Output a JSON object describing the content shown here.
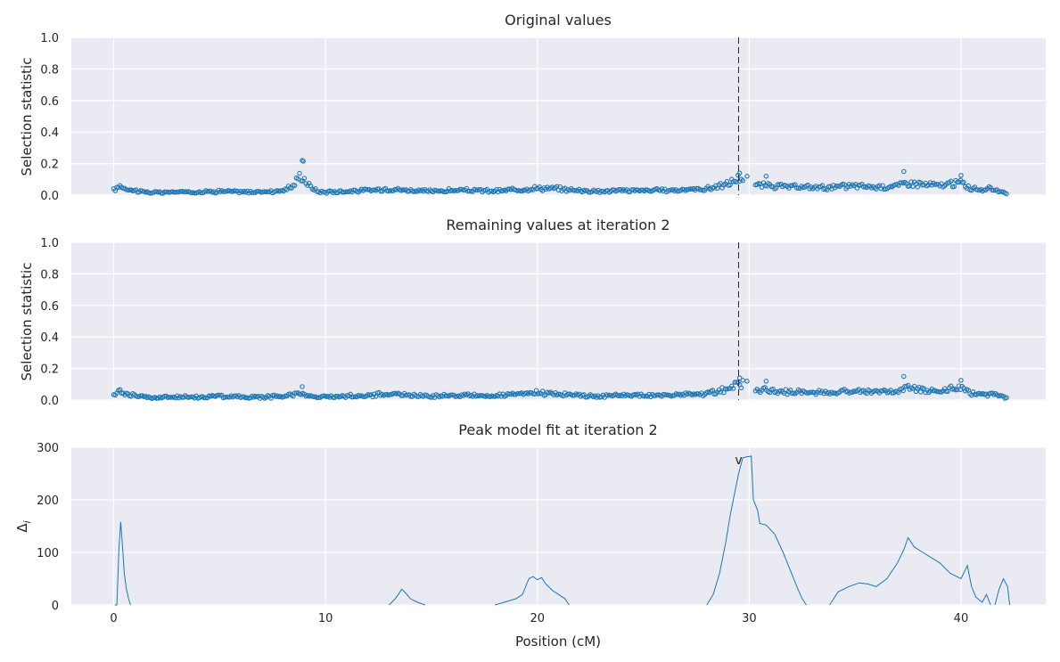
{
  "chart_data": [
    {
      "type": "scatter",
      "title": "Original values",
      "ylabel": "Selection statistic",
      "xlim": [
        -2,
        44
      ],
      "ylim": [
        0,
        1
      ],
      "x_ticks": [
        0,
        10,
        20,
        30,
        40
      ],
      "y_ticks": [
        "0.0",
        "0.2",
        "0.4",
        "0.6",
        "0.8",
        "1.0"
      ],
      "marker_line_x": 29.5,
      "profile": [
        [
          0.0,
          0.03
        ],
        [
          0.3,
          0.06
        ],
        [
          0.6,
          0.04
        ],
        [
          1.0,
          0.03
        ],
        [
          1.5,
          0.02
        ],
        [
          2.0,
          0.015
        ],
        [
          3.0,
          0.02
        ],
        [
          4.0,
          0.02
        ],
        [
          5.0,
          0.025
        ],
        [
          6.0,
          0.02
        ],
        [
          7.0,
          0.02
        ],
        [
          8.0,
          0.03
        ],
        [
          8.5,
          0.06
        ],
        [
          8.8,
          0.13
        ],
        [
          9.0,
          0.1
        ],
        [
          9.3,
          0.05
        ],
        [
          9.7,
          0.02
        ],
        [
          10.0,
          0.02
        ],
        [
          11.0,
          0.025
        ],
        [
          12.0,
          0.03
        ],
        [
          13.0,
          0.04
        ],
        [
          14.0,
          0.03
        ],
        [
          15.0,
          0.025
        ],
        [
          16.0,
          0.03
        ],
        [
          17.0,
          0.03
        ],
        [
          18.0,
          0.025
        ],
        [
          19.0,
          0.035
        ],
        [
          20.0,
          0.045
        ],
        [
          21.0,
          0.04
        ],
        [
          22.0,
          0.03
        ],
        [
          23.0,
          0.025
        ],
        [
          24.0,
          0.03
        ],
        [
          25.0,
          0.03
        ],
        [
          26.0,
          0.03
        ],
        [
          27.0,
          0.035
        ],
        [
          28.0,
          0.04
        ],
        [
          28.5,
          0.055
        ],
        [
          29.0,
          0.07
        ],
        [
          29.5,
          0.11
        ],
        [
          29.8,
          0.1
        ],
        [
          30.0,
          0.07
        ],
        [
          30.5,
          0.06
        ],
        [
          31.0,
          0.06
        ],
        [
          32.0,
          0.05
        ],
        [
          33.0,
          0.05
        ],
        [
          34.0,
          0.05
        ],
        [
          35.0,
          0.06
        ],
        [
          36.0,
          0.05
        ],
        [
          37.0,
          0.06
        ],
        [
          37.5,
          0.08
        ],
        [
          38.0,
          0.07
        ],
        [
          39.0,
          0.06
        ],
        [
          40.0,
          0.08
        ],
        [
          40.5,
          0.04
        ],
        [
          41.0,
          0.035
        ],
        [
          41.5,
          0.04
        ],
        [
          42.0,
          0.02
        ],
        [
          42.2,
          0.015
        ]
      ],
      "extra_points": [
        [
          8.9,
          0.22
        ],
        [
          8.95,
          0.215
        ],
        [
          29.55,
          0.14
        ],
        [
          37.3,
          0.15
        ],
        [
          40.0,
          0.125
        ],
        [
          29.9,
          0.12
        ],
        [
          30.8,
          0.12
        ]
      ]
    },
    {
      "type": "scatter",
      "title": "Remaining values at iteration 2",
      "ylabel": "Selection statistic",
      "xlim": [
        -2,
        44
      ],
      "ylim": [
        0,
        1
      ],
      "x_ticks": [
        0,
        10,
        20,
        30,
        40
      ],
      "y_ticks": [
        "0.0",
        "0.2",
        "0.4",
        "0.6",
        "0.8",
        "1.0"
      ],
      "marker_line_x": 29.5,
      "profile": [
        [
          0.0,
          0.03
        ],
        [
          0.3,
          0.06
        ],
        [
          0.6,
          0.04
        ],
        [
          1.0,
          0.03
        ],
        [
          1.5,
          0.02
        ],
        [
          2.0,
          0.015
        ],
        [
          3.0,
          0.02
        ],
        [
          4.0,
          0.02
        ],
        [
          5.0,
          0.025
        ],
        [
          6.0,
          0.02
        ],
        [
          7.0,
          0.02
        ],
        [
          8.0,
          0.025
        ],
        [
          8.5,
          0.04
        ],
        [
          8.8,
          0.05
        ],
        [
          9.0,
          0.03
        ],
        [
          9.5,
          0.02
        ],
        [
          10.0,
          0.02
        ],
        [
          11.0,
          0.025
        ],
        [
          12.0,
          0.03
        ],
        [
          13.0,
          0.04
        ],
        [
          14.0,
          0.03
        ],
        [
          15.0,
          0.025
        ],
        [
          16.0,
          0.03
        ],
        [
          17.0,
          0.03
        ],
        [
          18.0,
          0.025
        ],
        [
          19.0,
          0.035
        ],
        [
          20.0,
          0.045
        ],
        [
          21.0,
          0.04
        ],
        [
          22.0,
          0.03
        ],
        [
          23.0,
          0.025
        ],
        [
          24.0,
          0.03
        ],
        [
          25.0,
          0.03
        ],
        [
          26.0,
          0.03
        ],
        [
          27.0,
          0.035
        ],
        [
          28.0,
          0.04
        ],
        [
          28.5,
          0.055
        ],
        [
          29.0,
          0.07
        ],
        [
          29.5,
          0.11
        ],
        [
          29.8,
          0.1
        ],
        [
          30.0,
          0.07
        ],
        [
          30.5,
          0.06
        ],
        [
          31.0,
          0.06
        ],
        [
          32.0,
          0.05
        ],
        [
          33.0,
          0.05
        ],
        [
          34.0,
          0.05
        ],
        [
          35.0,
          0.06
        ],
        [
          36.0,
          0.05
        ],
        [
          37.0,
          0.06
        ],
        [
          37.5,
          0.08
        ],
        [
          38.0,
          0.07
        ],
        [
          39.0,
          0.06
        ],
        [
          40.0,
          0.08
        ],
        [
          40.5,
          0.04
        ],
        [
          41.0,
          0.035
        ],
        [
          41.5,
          0.04
        ],
        [
          42.0,
          0.02
        ],
        [
          42.2,
          0.015
        ]
      ],
      "extra_points": [
        [
          8.9,
          0.085
        ],
        [
          29.55,
          0.14
        ],
        [
          37.3,
          0.15
        ],
        [
          40.0,
          0.125
        ],
        [
          29.9,
          0.12
        ],
        [
          30.8,
          0.12
        ]
      ]
    },
    {
      "type": "line",
      "title": "Peak model fit at iteration 2",
      "ylabel": "Δ",
      "ylabel_subscript": "i",
      "xlabel": "Position (cM)",
      "xlim": [
        -2,
        44
      ],
      "ylim": [
        0,
        300
      ],
      "x_ticks": [
        0,
        10,
        20,
        30,
        40
      ],
      "y_ticks": [
        "0",
        "100",
        "200",
        "300"
      ],
      "peak_annotation": {
        "text": "v",
        "x": 29.5,
        "y": 275
      },
      "segments": [
        [
          [
            0.05,
            0
          ],
          [
            0.15,
            0
          ],
          [
            0.25,
            110
          ],
          [
            0.33,
            158
          ],
          [
            0.42,
            110
          ],
          [
            0.5,
            60
          ],
          [
            0.6,
            30
          ],
          [
            0.7,
            12
          ],
          [
            0.8,
            0
          ]
        ],
        [
          [
            13.0,
            0
          ],
          [
            13.3,
            12
          ],
          [
            13.6,
            30
          ],
          [
            13.8,
            22
          ],
          [
            14.0,
            12
          ],
          [
            14.3,
            6
          ],
          [
            14.7,
            0
          ]
        ],
        [
          [
            18.0,
            0
          ],
          [
            18.5,
            6
          ],
          [
            19.0,
            12
          ],
          [
            19.3,
            20
          ],
          [
            19.6,
            50
          ],
          [
            19.8,
            54
          ],
          [
            20.0,
            48
          ],
          [
            20.2,
            52
          ],
          [
            20.4,
            40
          ],
          [
            20.7,
            28
          ],
          [
            21.0,
            20
          ],
          [
            21.3,
            12
          ],
          [
            21.5,
            0
          ]
        ],
        [
          [
            28.0,
            0
          ],
          [
            28.3,
            20
          ],
          [
            28.6,
            60
          ],
          [
            28.9,
            120
          ],
          [
            29.1,
            170
          ],
          [
            29.3,
            210
          ],
          [
            29.5,
            250
          ],
          [
            29.7,
            280
          ],
          [
            29.9,
            282
          ],
          [
            30.1,
            283
          ],
          [
            30.2,
            200
          ],
          [
            30.4,
            180
          ],
          [
            30.5,
            155
          ],
          [
            30.8,
            152
          ],
          [
            31.2,
            135
          ],
          [
            31.6,
            100
          ],
          [
            32.0,
            60
          ],
          [
            32.3,
            30
          ],
          [
            32.5,
            12
          ],
          [
            32.7,
            0
          ]
        ],
        [
          [
            33.8,
            0
          ],
          [
            34.2,
            25
          ],
          [
            34.7,
            35
          ],
          [
            35.2,
            42
          ],
          [
            35.6,
            40
          ],
          [
            36.0,
            35
          ],
          [
            36.5,
            50
          ],
          [
            37.0,
            80
          ],
          [
            37.3,
            105
          ],
          [
            37.5,
            128
          ],
          [
            37.8,
            110
          ],
          [
            38.2,
            100
          ],
          [
            38.6,
            90
          ],
          [
            39.0,
            80
          ],
          [
            39.5,
            60
          ],
          [
            40.0,
            50
          ],
          [
            40.3,
            75
          ],
          [
            40.5,
            35
          ],
          [
            40.7,
            15
          ],
          [
            41.0,
            5
          ],
          [
            41.2,
            20
          ],
          [
            41.4,
            0
          ]
        ],
        [
          [
            41.6,
            0
          ],
          [
            41.8,
            30
          ],
          [
            42.0,
            50
          ],
          [
            42.2,
            35
          ],
          [
            42.3,
            0
          ]
        ]
      ]
    }
  ]
}
